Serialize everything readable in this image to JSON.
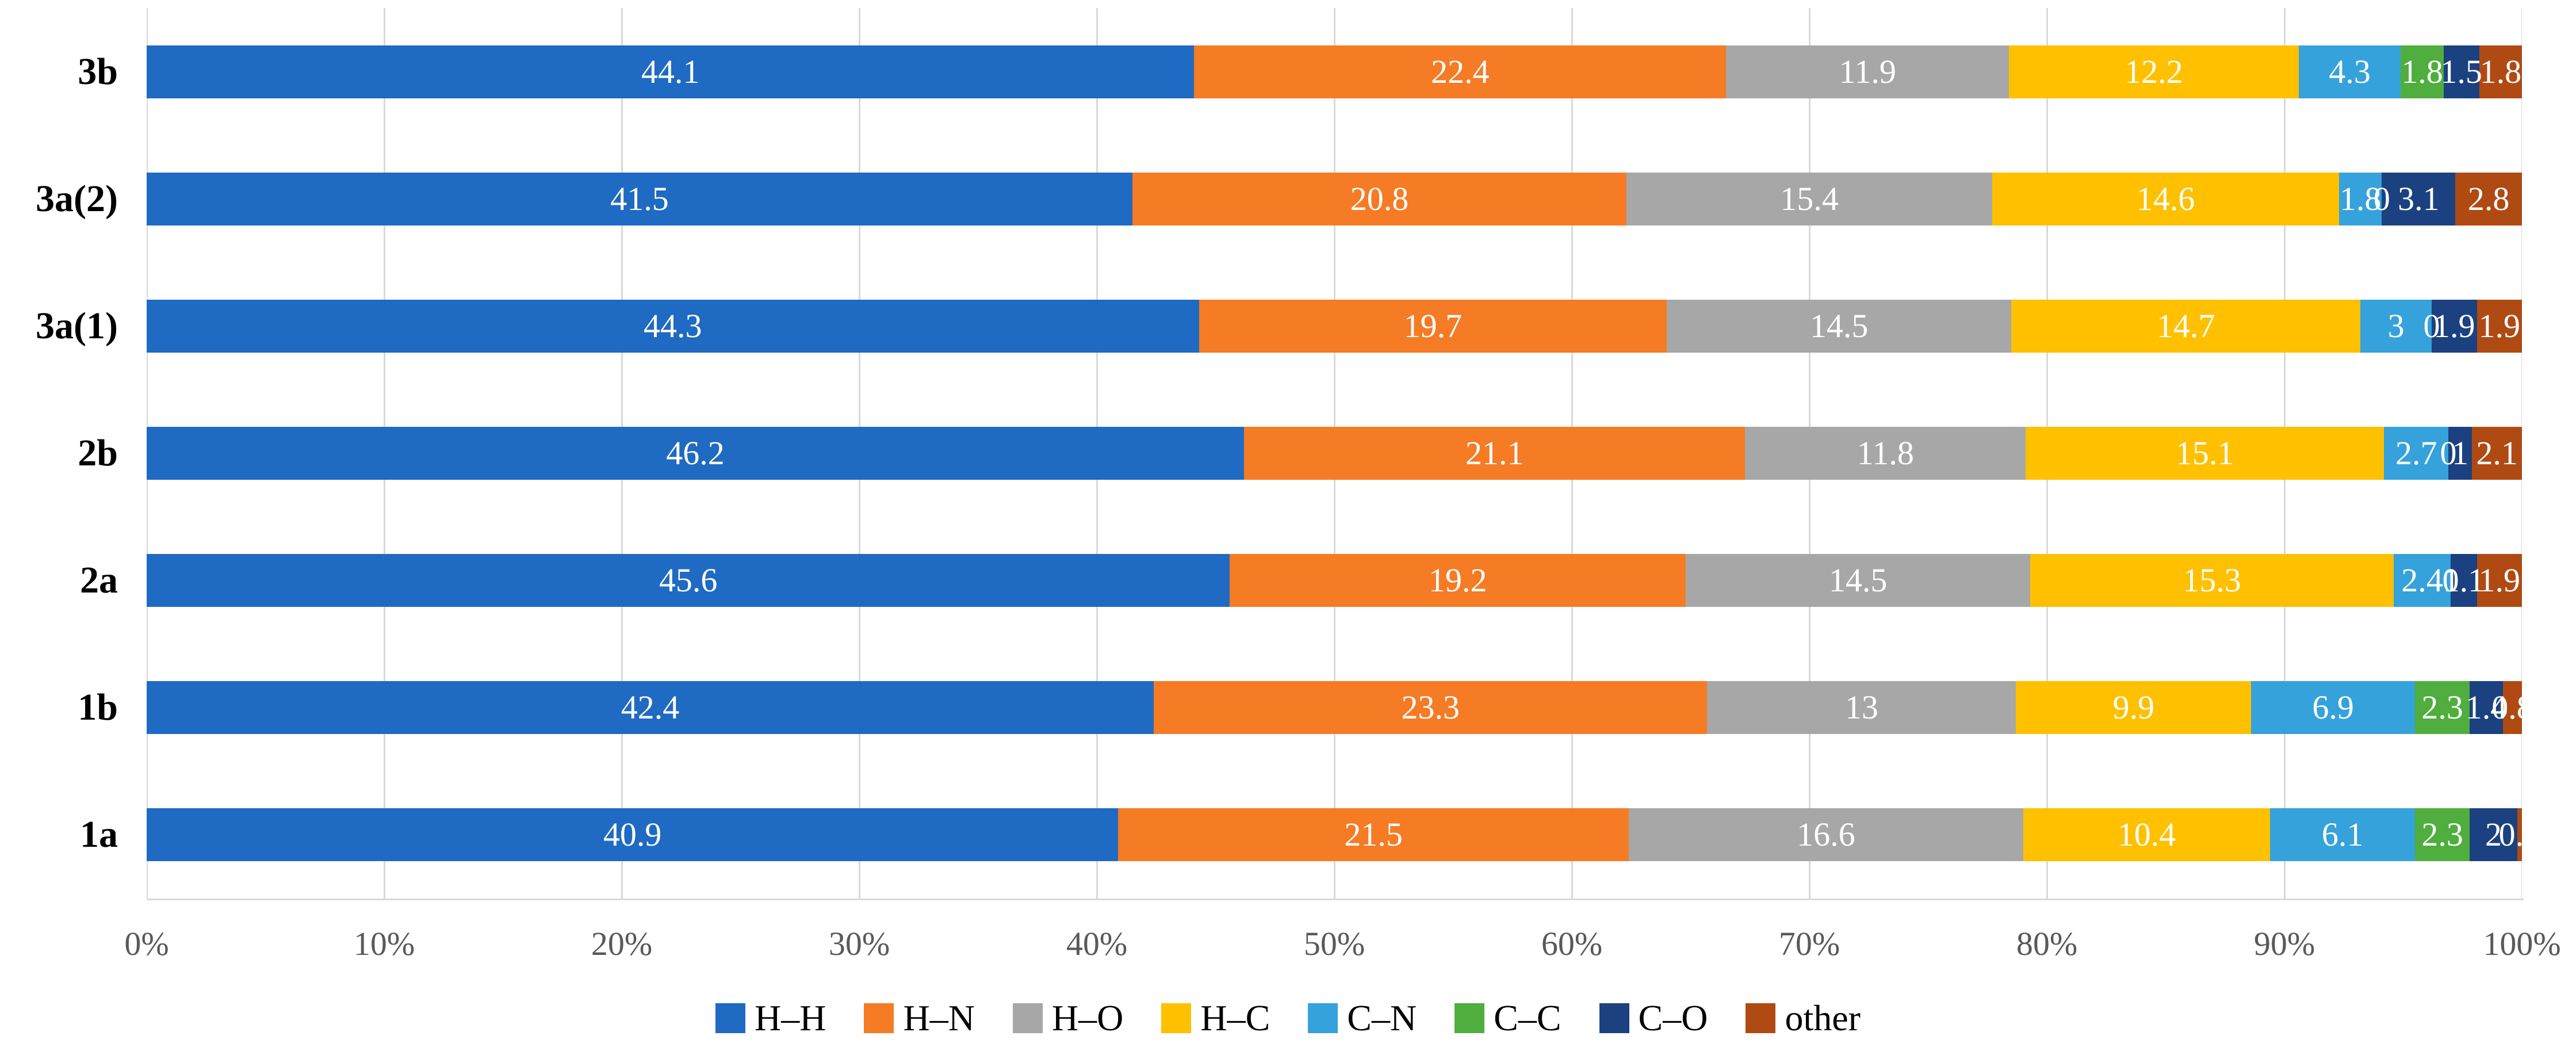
{
  "chart_data": {
    "type": "bar",
    "stacked": true,
    "orientation": "horizontal",
    "title": "",
    "xlabel": "",
    "ylabel": "",
    "unit": "percent",
    "xlim": [
      0,
      100
    ],
    "grid": true,
    "legend_position": "bottom",
    "x_ticks": [
      "0%",
      "10%",
      "20%",
      "30%",
      "40%",
      "50%",
      "60%",
      "70%",
      "80%",
      "90%",
      "100%"
    ],
    "categories": [
      "3b",
      "3a(2)",
      "3a(1)",
      "2b",
      "2a",
      "1b",
      "1a"
    ],
    "series": [
      {
        "name": "H–H",
        "color": "#1F6AC2",
        "values": [
          44.1,
          41.5,
          44.3,
          46.2,
          45.6,
          42.4,
          40.9
        ],
        "labels": [
          "44.1",
          "41.5",
          "44.3",
          "46.2",
          "45.6",
          "42.4",
          "40.9"
        ]
      },
      {
        "name": "H–N",
        "color": "#F57B25",
        "values": [
          22.4,
          20.8,
          19.7,
          21.1,
          19.2,
          23.3,
          21.5
        ],
        "labels": [
          "22.4",
          "20.8",
          "19.7",
          "21.1",
          "19.2",
          "23.3",
          "21.5"
        ]
      },
      {
        "name": "H–O",
        "color": "#A7A7A7",
        "values": [
          11.9,
          15.4,
          14.5,
          11.8,
          14.5,
          13,
          16.6
        ],
        "labels": [
          "11.9",
          "15.4",
          "14.5",
          "11.8",
          "14.5",
          "13",
          "16.6"
        ]
      },
      {
        "name": "H–C",
        "color": "#FFC000",
        "values": [
          12.2,
          14.6,
          14.7,
          15.1,
          15.3,
          9.9,
          10.4
        ],
        "labels": [
          "12.2",
          "14.6",
          "14.7",
          "15.1",
          "15.3",
          "9.9",
          "10.4"
        ]
      },
      {
        "name": "C–N",
        "color": "#36A2DB",
        "values": [
          4.3,
          1.8,
          3,
          2.7,
          2.4,
          6.9,
          6.1
        ],
        "labels": [
          "4.3",
          "1.8",
          "3",
          "2.7",
          "2.4",
          "6.9",
          "6.1"
        ]
      },
      {
        "name": "C–C",
        "color": "#4FAE3D",
        "values": [
          1.8,
          0,
          0,
          0,
          0,
          2.3,
          2.3
        ],
        "labels": [
          "1.8",
          "0",
          "0",
          "0",
          "0",
          "2.3",
          "2.3"
        ]
      },
      {
        "name": "C–O",
        "color": "#1B4180",
        "values": [
          1.5,
          3.1,
          1.9,
          1,
          1.1,
          1.4,
          2
        ],
        "labels": [
          "1.5",
          "3.1",
          "1.9",
          "1",
          "1.1",
          "1.4",
          "2"
        ]
      },
      {
        "name": "other",
        "color": "#B04A13",
        "values": [
          1.8,
          2.8,
          1.9,
          2.1,
          1.9,
          0.8,
          0.2
        ],
        "labels": [
          "1.8",
          "2.8",
          "1.9",
          "2.1",
          "1.9",
          "0.8",
          "0.2"
        ]
      }
    ],
    "style": {
      "gridline_color": "#D9D9D9",
      "tick_label_color": "#595959",
      "bar_label_color": "#FFFFFF"
    }
  }
}
